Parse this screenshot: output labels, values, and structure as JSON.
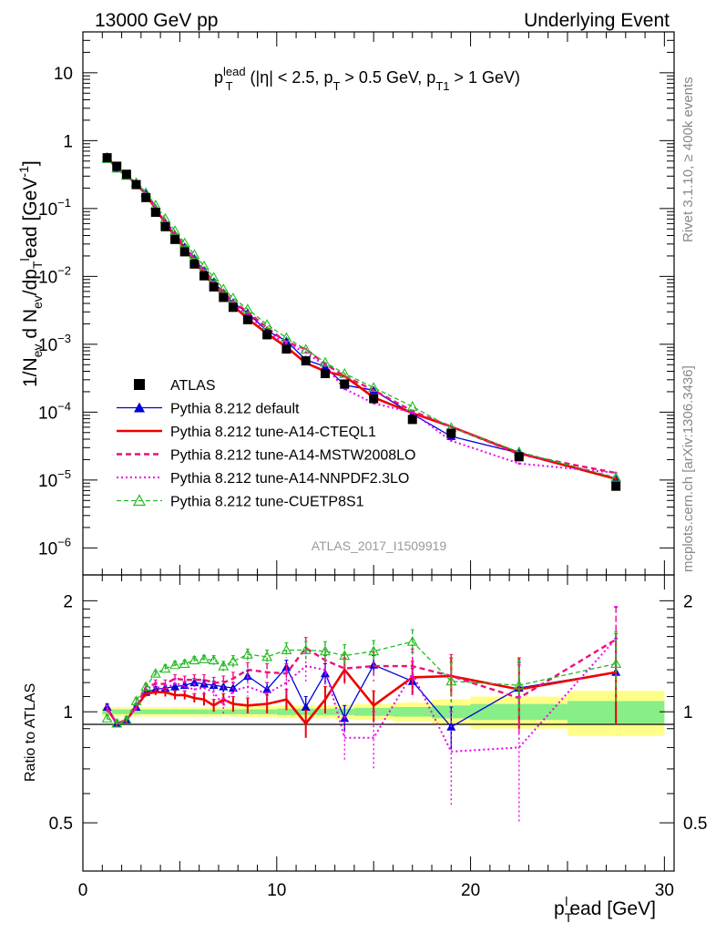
{
  "header": {
    "left": "13000 GeV pp",
    "right": "Underlying Event"
  },
  "side": {
    "rivet": "Rivet 3.1.10, ≥ 400k events",
    "mcplots": "mcplots.cern.ch [arXiv:1306.3436]"
  },
  "analysis_tag": "ATLAS_2017_I1509919",
  "chart_data": [
    {
      "type": "line",
      "panel": "main",
      "title": "p_T^lead (|η| < 2.5, p_T > 0.5 GeV, p_T1 > 1 GeV)",
      "title_parts": {
        "p": "p",
        "T": "T",
        "lead": "lead",
        "rest1": " (|η| < 2.5, p",
        "T2": "T",
        "rest2": " > 0.5 GeV, p",
        "T3": "T1",
        "rest3": " > 1 GeV)"
      },
      "xlabel": "p_T^lead [GeV]",
      "ylabel": "1/N_ev d N_ev/dp_T^lead [GeV^-1]",
      "xlim": [
        0,
        30.5
      ],
      "ylim": [
        4e-07,
        40
      ],
      "yscale": "log",
      "ytick_labels": [
        "10",
        "1",
        "10−1",
        "10−2",
        "10−3",
        "10−4",
        "10−5",
        "10−6"
      ],
      "xtick_labels": [
        "0",
        "10",
        "20",
        "30"
      ],
      "legend_position": "center-left",
      "x": [
        1.25,
        1.75,
        2.25,
        2.75,
        3.25,
        3.75,
        4.25,
        4.75,
        5.25,
        5.75,
        6.25,
        6.75,
        7.25,
        7.75,
        8.5,
        9.5,
        10.5,
        11.5,
        12.5,
        13.5,
        15.0,
        17.0,
        19.0,
        22.5,
        27.5
      ],
      "series": [
        {
          "name": "ATLAS",
          "style": "data",
          "color": "#000000",
          "values": [
            0.56,
            0.42,
            0.32,
            0.225,
            0.145,
            0.088,
            0.054,
            0.035,
            0.023,
            0.0152,
            0.0102,
            0.007,
            0.0049,
            0.0035,
            0.0023,
            0.00138,
            0.00085,
            0.00057,
            0.00037,
            0.00026,
            0.000158,
            7.8e-05,
            4.9e-05,
            2.2e-05,
            8.1e-06
          ]
        },
        {
          "name": "Pythia 8.212 default",
          "style": "blue",
          "color": "#0000dd",
          "values": [
            0.58,
            0.39,
            0.305,
            0.232,
            0.165,
            0.101,
            0.062,
            0.041,
            0.0272,
            0.0183,
            0.0121,
            0.0083,
            0.0057,
            0.0041,
            0.0029,
            0.00158,
            0.00112,
            0.00059,
            0.00047,
            0.00025,
            0.00021,
            9.4e-05,
            4.4e-05,
            2.5e-05,
            1.03e-05
          ]
        },
        {
          "name": "Pythia 8.212 tune-A14-CTEQL1",
          "style": "red",
          "color": "#ee0000",
          "values": [
            0.57,
            0.39,
            0.305,
            0.232,
            0.162,
            0.099,
            0.061,
            0.039,
            0.0255,
            0.0166,
            0.011,
            0.0073,
            0.0053,
            0.0037,
            0.00238,
            0.00144,
            0.00091,
            0.00053,
            0.0004,
            0.00034,
            0.000165,
            9.7e-05,
            6.1e-05,
            2.5e-05,
            1.04e-05
          ]
        },
        {
          "name": "Pythia 8.212 tune-A14-MSTW2008LO",
          "style": "pinkdash",
          "color": "#ee1177",
          "values": [
            0.57,
            0.39,
            0.305,
            0.232,
            0.17,
            0.105,
            0.064,
            0.043,
            0.028,
            0.0186,
            0.0124,
            0.0084,
            0.0059,
            0.0043,
            0.003,
            0.00176,
            0.00108,
            0.00085,
            0.00051,
            0.00034,
            0.00021,
            0.000104,
            6.1e-05,
            2.4e-05,
            1.27e-05
          ]
        },
        {
          "name": "Pythia 8.212 tune-A14-NNPDF2.3LO",
          "style": "pinkdot",
          "color": "#ee00ee",
          "values": [
            0.57,
            0.39,
            0.305,
            0.232,
            0.168,
            0.103,
            0.062,
            0.042,
            0.027,
            0.0175,
            0.0118,
            0.0079,
            0.0051,
            0.004,
            0.0027,
            0.00155,
            0.00102,
            0.00076,
            0.00048,
            0.00022,
            0.000135,
            9.9e-05,
            3.8e-05,
            1.75e-05,
            1.28e-05
          ]
        },
        {
          "name": "Pythia 8.212 tune-CUETP8S1",
          "style": "green",
          "color": "#22bb22",
          "values": [
            0.54,
            0.39,
            0.305,
            0.24,
            0.17,
            0.112,
            0.071,
            0.047,
            0.031,
            0.0209,
            0.0142,
            0.0097,
            0.0065,
            0.0048,
            0.0033,
            0.00195,
            0.00125,
            0.00084,
            0.00054,
            0.00037,
            0.00023,
            0.000121,
            5.9e-05,
            2.6e-05,
            1.09e-05
          ]
        }
      ]
    },
    {
      "type": "line",
      "panel": "ratio",
      "ylabel": "Ratio to ATLAS",
      "xlim": [
        0,
        30.5
      ],
      "ylim": [
        0.37,
        2.35
      ],
      "yscale": "log",
      "ytick_labels": [
        "2",
        "1",
        "0.5"
      ],
      "x_edges": [
        1.0,
        1.5,
        2.0,
        2.5,
        3.0,
        3.5,
        4.0,
        4.5,
        5.0,
        5.5,
        6.0,
        6.5,
        7.0,
        7.5,
        8.0,
        9.0,
        10.0,
        11.0,
        12.0,
        13.0,
        14.0,
        16.0,
        18.0,
        20.0,
        25.0,
        30.0
      ],
      "band_stat": [
        0.015,
        0.015,
        0.015,
        0.015,
        0.015,
        0.015,
        0.015,
        0.015,
        0.015,
        0.015,
        0.015,
        0.015,
        0.015,
        0.015,
        0.015,
        0.015,
        0.02,
        0.02,
        0.02,
        0.02,
        0.025,
        0.03,
        0.04,
        0.05,
        0.07
      ],
      "band_tot": [
        0.03,
        0.03,
        0.03,
        0.03,
        0.03,
        0.03,
        0.03,
        0.03,
        0.03,
        0.03,
        0.03,
        0.03,
        0.03,
        0.03,
        0.035,
        0.035,
        0.04,
        0.04,
        0.04,
        0.045,
        0.05,
        0.06,
        0.08,
        0.1,
        0.14
      ],
      "series": [
        {
          "name": "Pythia 8.212 default",
          "values": [
            1.03,
            0.93,
            0.95,
            1.03,
            1.13,
            1.15,
            1.16,
            1.17,
            1.18,
            1.2,
            1.19,
            1.18,
            1.17,
            1.16,
            1.25,
            1.15,
            1.32,
            1.03,
            1.27,
            0.96,
            1.34,
            1.21,
            0.91,
            1.16,
            1.28
          ],
          "err": [
            0.02,
            0.02,
            0.02,
            0.02,
            0.02,
            0.02,
            0.02,
            0.02,
            0.02,
            0.03,
            0.03,
            0.03,
            0.04,
            0.04,
            0.04,
            0.05,
            0.06,
            0.07,
            0.08,
            0.08,
            0.08,
            0.1,
            0.12,
            0.2,
            0.3
          ]
        },
        {
          "name": "Pythia 8.212 tune-A14-CTEQL1",
          "values": [
            1.02,
            0.93,
            0.95,
            1.03,
            1.12,
            1.13,
            1.13,
            1.11,
            1.11,
            1.09,
            1.08,
            1.04,
            1.08,
            1.05,
            1.04,
            1.05,
            1.08,
            0.93,
            1.08,
            1.3,
            1.04,
            1.24,
            1.25,
            1.15,
            1.28
          ],
          "err": [
            0.02,
            0.02,
            0.02,
            0.02,
            0.02,
            0.02,
            0.03,
            0.03,
            0.03,
            0.03,
            0.04,
            0.04,
            0.04,
            0.05,
            0.05,
            0.06,
            0.07,
            0.08,
            0.09,
            0.1,
            0.1,
            0.13,
            0.15,
            0.25,
            0.35
          ]
        },
        {
          "name": "Pythia 8.212 tune-A14-MSTW2008LO",
          "values": [
            1.02,
            0.93,
            0.95,
            1.03,
            1.17,
            1.19,
            1.19,
            1.23,
            1.22,
            1.22,
            1.22,
            1.2,
            1.2,
            1.23,
            1.3,
            1.28,
            1.27,
            1.49,
            1.38,
            1.31,
            1.33,
            1.33,
            1.25,
            1.09,
            1.57
          ],
          "err": [
            0.02,
            0.02,
            0.02,
            0.02,
            0.02,
            0.03,
            0.03,
            0.03,
            0.03,
            0.04,
            0.04,
            0.04,
            0.05,
            0.05,
            0.06,
            0.07,
            0.08,
            0.1,
            0.1,
            0.12,
            0.12,
            0.15,
            0.18,
            0.25,
            0.35
          ]
        },
        {
          "name": "Pythia 8.212 tune-A14-NNPDF2.3LO",
          "values": [
            1.02,
            0.93,
            0.95,
            1.03,
            1.16,
            1.17,
            1.15,
            1.2,
            1.17,
            1.15,
            1.16,
            1.13,
            1.04,
            1.14,
            1.17,
            1.12,
            1.2,
            1.33,
            1.3,
            0.85,
            0.85,
            1.27,
            0.78,
            0.8,
            1.58
          ],
          "err": [
            0.02,
            0.02,
            0.02,
            0.02,
            0.03,
            0.03,
            0.03,
            0.03,
            0.04,
            0.04,
            0.04,
            0.05,
            0.05,
            0.06,
            0.07,
            0.08,
            0.1,
            0.12,
            0.12,
            0.12,
            0.15,
            0.18,
            0.22,
            0.3,
            0.35
          ]
        },
        {
          "name": "Pythia 8.212 tune-CUETP8S1",
          "values": [
            0.96,
            0.93,
            0.95,
            1.07,
            1.17,
            1.27,
            1.31,
            1.34,
            1.35,
            1.38,
            1.39,
            1.38,
            1.33,
            1.37,
            1.43,
            1.41,
            1.47,
            1.47,
            1.46,
            1.42,
            1.46,
            1.55,
            1.21,
            1.18,
            1.35
          ],
          "err": [
            0.02,
            0.02,
            0.02,
            0.02,
            0.02,
            0.02,
            0.03,
            0.03,
            0.03,
            0.03,
            0.03,
            0.04,
            0.04,
            0.05,
            0.05,
            0.06,
            0.07,
            0.08,
            0.09,
            0.1,
            0.1,
            0.12,
            0.15,
            0.2,
            0.3
          ]
        }
      ]
    }
  ]
}
